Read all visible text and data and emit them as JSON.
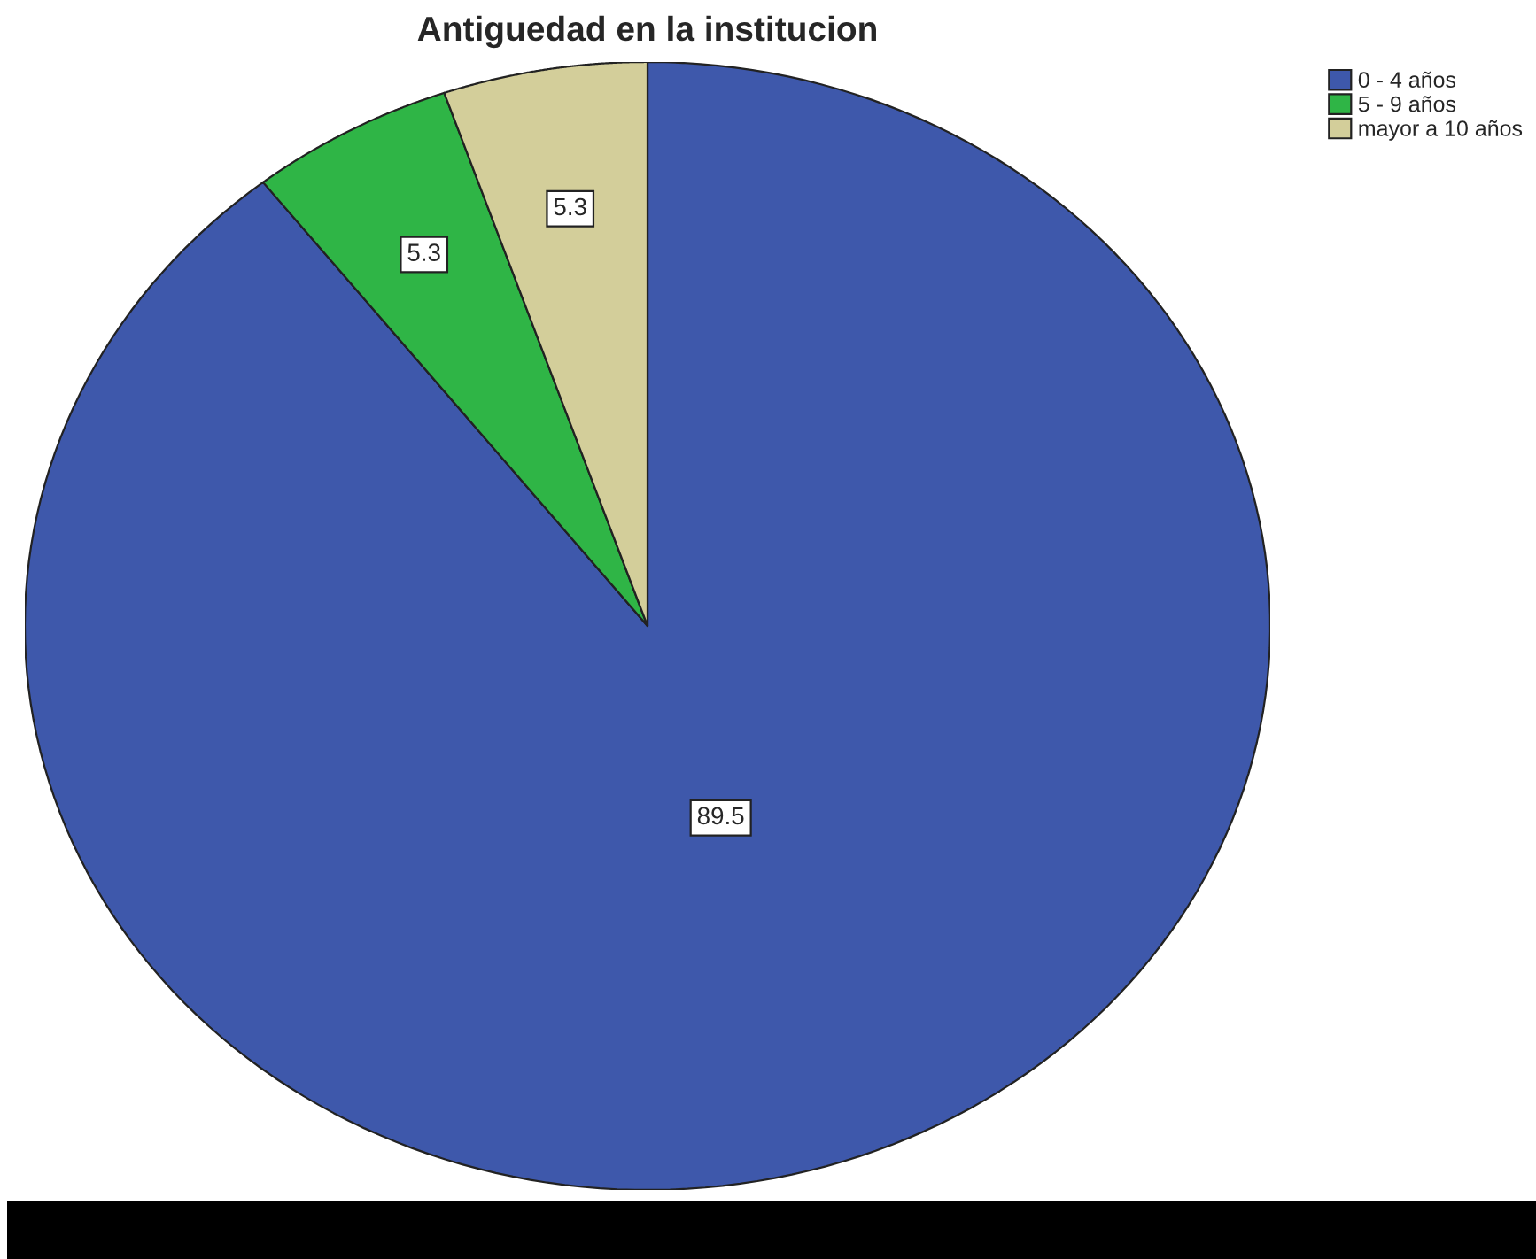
{
  "chart_data": {
    "type": "pie",
    "title": "Antiguedad en la institucion",
    "categories": [
      "0 - 4 años",
      "5 - 9 años",
      "mayor a 10 años"
    ],
    "values": [
      89.5,
      5.3,
      5.3
    ],
    "colors": [
      "#3e58ab",
      "#2fb546",
      "#d3ce9a"
    ],
    "data_labels": true,
    "legend": "top right"
  }
}
